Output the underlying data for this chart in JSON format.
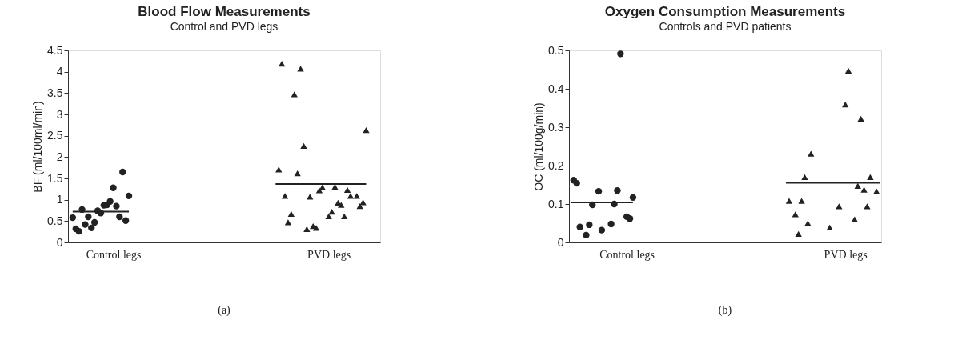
{
  "chart_data": [
    {
      "type": "scatter",
      "title": "Blood Flow Measurements",
      "subtitle": "Control and PVD legs",
      "ylabel": "BF (ml/100ml/min)",
      "categories": [
        null,
        null,
        null,
        null,
        null,
        null,
        null,
        null,
        null,
        null,
        null,
        null,
        null,
        null,
        "Control legs",
        null,
        null,
        null,
        null,
        null,
        null,
        null,
        null,
        null,
        null,
        null,
        null,
        null,
        null,
        null,
        null,
        null,
        null,
        null,
        null,
        null,
        null,
        null,
        null,
        null,
        null,
        null,
        null,
        null,
        null,
        null,
        null,
        null,
        null,
        null,
        null,
        null,
        null,
        null,
        null,
        null,
        null,
        null,
        null,
        null,
        null,
        null,
        null,
        null,
        null,
        null,
        null,
        null,
        null,
        null,
        null,
        null,
        null,
        null,
        null,
        null,
        null,
        null,
        null,
        null,
        null,
        null,
        null,
        "PVD legs",
        null,
        null,
        null,
        null,
        null,
        null,
        null,
        null,
        null,
        null,
        null,
        null,
        null,
        null,
        null,
        null
      ],
      "ylim": [
        0,
        4.5
      ],
      "yticks": [
        0,
        0.5,
        1,
        1.5,
        2,
        2.5,
        3,
        3.5,
        4,
        4.5
      ],
      "grid": false,
      "legend": false,
      "annotations": [
        "(a)"
      ],
      "series": [
        {
          "marker": "circle",
          "color": "#222222",
          "values": [
            null,
            0.58,
            0.32,
            0.26,
            0.77,
            0.42,
            0.6,
            0.34,
            0.47,
            0.74,
            0.69,
            0.87,
            0.88,
            0.96,
            1.28,
            0.85,
            0.6,
            1.65,
            0.51,
            1.09,
            null,
            null,
            null,
            null,
            null,
            null,
            null,
            null,
            null,
            null,
            null,
            null,
            null,
            null,
            null,
            null,
            null,
            null,
            null,
            null,
            null,
            null,
            null,
            null,
            null,
            null,
            null,
            null,
            null,
            null,
            null,
            null,
            null,
            null,
            null,
            null,
            null,
            null,
            null,
            null,
            null,
            null,
            null,
            null,
            null,
            null,
            null,
            null,
            null,
            null,
            null,
            null,
            null,
            null,
            null,
            null,
            null,
            null,
            null,
            null,
            null,
            null,
            null,
            null,
            null,
            null,
            null,
            null,
            null,
            null,
            null,
            null,
            null,
            null,
            null,
            null,
            null,
            null,
            null,
            null
          ]
        },
        {
          "marker": "triangle",
          "color": "#222222",
          "values": [
            null,
            null,
            null,
            null,
            null,
            null,
            null,
            null,
            null,
            null,
            null,
            null,
            null,
            null,
            null,
            null,
            null,
            null,
            null,
            null,
            null,
            null,
            null,
            null,
            null,
            null,
            null,
            null,
            null,
            null,
            null,
            null,
            null,
            null,
            null,
            null,
            null,
            null,
            null,
            null,
            null,
            null,
            null,
            null,
            null,
            null,
            null,
            null,
            null,
            null,
            null,
            null,
            null,
            null,
            null,
            null,
            null,
            null,
            null,
            null,
            null,
            null,
            null,
            null,
            null,
            null,
            null,
            1.71,
            4.19,
            1.09,
            0.47,
            0.67,
            3.47,
            1.62,
            4.07,
            2.26,
            0.31,
            1.07,
            0.38,
            0.34,
            1.22,
            1.29,
            null,
            0.61,
            0.72,
            1.3,
            0.93,
            0.88,
            0.61,
            1.23,
            1.09,
            null,
            1.09,
            0.85,
            0.94,
            2.63,
            null,
            null,
            null,
            null
          ]
        },
        {
          "type": "line",
          "marker": "none",
          "color": "#222222",
          "values": [
            null,
            0.72,
            0.72,
            0.72,
            0.72,
            0.72,
            0.72,
            0.72,
            0.72,
            0.72,
            0.72,
            0.72,
            0.72,
            0.72,
            0.72,
            0.72,
            0.72,
            0.72,
            0.72,
            0.72,
            null,
            null,
            null,
            null,
            null,
            null,
            null,
            null,
            null,
            null,
            null,
            null,
            null,
            null,
            null,
            null,
            null,
            null,
            null,
            null,
            null,
            null,
            null,
            null,
            null,
            null,
            null,
            null,
            null,
            null,
            null,
            null,
            null,
            null,
            null,
            null,
            null,
            null,
            null,
            null,
            null,
            null,
            null,
            null,
            null,
            null,
            null,
            null,
            null,
            null,
            null,
            null,
            null,
            null,
            null,
            null,
            null,
            null,
            null,
            null,
            null,
            null,
            null,
            null,
            null,
            null,
            null,
            null,
            null,
            null,
            null,
            null,
            null,
            null,
            null,
            null,
            null,
            null,
            null,
            null
          ]
        },
        {
          "type": "line",
          "marker": "none",
          "color": "#222222",
          "values": [
            null,
            null,
            null,
            null,
            null,
            null,
            null,
            null,
            null,
            null,
            null,
            null,
            null,
            null,
            null,
            null,
            null,
            null,
            null,
            null,
            null,
            null,
            null,
            null,
            null,
            null,
            null,
            null,
            null,
            null,
            null,
            null,
            null,
            null,
            null,
            null,
            null,
            null,
            null,
            null,
            null,
            null,
            null,
            null,
            null,
            null,
            null,
            null,
            null,
            null,
            null,
            null,
            null,
            null,
            null,
            null,
            null,
            null,
            null,
            null,
            null,
            null,
            null,
            null,
            null,
            null,
            1.37,
            1.37,
            1.37,
            1.37,
            1.37,
            1.37,
            1.37,
            1.37,
            1.37,
            1.37,
            1.37,
            1.37,
            1.37,
            1.37,
            1.37,
            1.37,
            1.37,
            1.37,
            1.37,
            1.37,
            1.37,
            1.37,
            1.37,
            1.37,
            1.37,
            1.37,
            1.37,
            1.37,
            1.37,
            1.37,
            null,
            null,
            null,
            null
          ]
        }
      ]
    },
    {
      "type": "scatter",
      "title": "Oxygen Consumption Measurements",
      "subtitle": "Controls and PVD patients",
      "ylabel": "OC (ml/100g/min)",
      "categories": [
        null,
        null,
        null,
        null,
        null,
        null,
        null,
        null,
        null,
        null,
        null,
        null,
        null,
        null,
        null,
        null,
        null,
        null,
        "Control legs",
        null,
        null,
        null,
        null,
        null,
        null,
        null,
        null,
        null,
        null,
        null,
        null,
        null,
        null,
        null,
        null,
        null,
        null,
        null,
        null,
        null,
        null,
        null,
        null,
        null,
        null,
        null,
        null,
        null,
        null,
        null,
        null,
        null,
        null,
        null,
        null,
        null,
        null,
        null,
        null,
        null,
        null,
        null,
        null,
        null,
        null,
        null,
        null,
        null,
        null,
        null,
        null,
        null,
        null,
        null,
        null,
        null,
        null,
        null,
        null,
        null,
        null,
        null,
        null,
        null,
        null,
        null,
        null,
        null,
        "PVD legs",
        null,
        null,
        null,
        null,
        null,
        null,
        null,
        null,
        null,
        null,
        null
      ],
      "ylim": [
        0,
        0.5
      ],
      "yticks": [
        0,
        0.1,
        0.2,
        0.3,
        0.4,
        0.5
      ],
      "grid": false,
      "legend": false,
      "annotations": [
        "(b)"
      ],
      "series": [
        {
          "marker": "circle",
          "color": "#222222",
          "values": [
            null,
            0.162,
            0.154,
            0.04,
            null,
            0.019,
            0.046,
            0.098,
            null,
            0.133,
            0.032,
            null,
            null,
            0.048,
            0.1,
            0.135,
            0.491,
            null,
            0.067,
            0.062,
            0.117,
            null,
            null,
            null,
            null,
            null,
            null,
            null,
            null,
            null,
            null,
            null,
            null,
            null,
            null,
            null,
            null,
            null,
            null,
            null,
            null,
            null,
            null,
            null,
            null,
            null,
            null,
            null,
            null,
            null,
            null,
            null,
            null,
            null,
            null,
            null,
            null,
            null,
            null,
            null,
            null,
            null,
            null,
            null,
            null,
            null,
            null,
            null,
            null,
            null,
            null,
            null,
            null,
            null,
            null,
            null,
            null,
            null,
            null,
            null,
            null,
            null,
            null,
            null,
            null,
            null,
            null,
            null,
            null,
            null,
            null,
            null,
            null,
            null,
            null,
            null,
            null,
            null,
            null,
            null
          ]
        },
        {
          "marker": "triangle",
          "color": "#222222",
          "values": [
            null,
            null,
            null,
            null,
            null,
            null,
            null,
            null,
            null,
            null,
            null,
            null,
            null,
            null,
            null,
            null,
            null,
            null,
            null,
            null,
            null,
            null,
            null,
            null,
            null,
            null,
            null,
            null,
            null,
            null,
            null,
            null,
            null,
            null,
            null,
            null,
            null,
            null,
            null,
            null,
            null,
            null,
            null,
            null,
            null,
            null,
            null,
            null,
            null,
            null,
            null,
            null,
            null,
            null,
            null,
            null,
            null,
            null,
            null,
            null,
            null,
            null,
            null,
            null,
            null,
            null,
            null,
            null,
            null,
            null,
            0.108,
            null,
            0.073,
            0.022,
            0.108,
            0.17,
            0.05,
            0.231,
            null,
            null,
            null,
            null,
            null,
            0.039,
            null,
            null,
            0.094,
            null,
            0.359,
            0.447,
            null,
            0.06,
            0.147,
            0.322,
            0.137,
            0.094,
            0.17,
            null,
            0.133,
            null
          ]
        },
        {
          "type": "line",
          "marker": "none",
          "color": "#222222",
          "values": [
            0.104,
            0.104,
            0.104,
            0.104,
            0.104,
            0.104,
            0.104,
            0.104,
            0.104,
            0.104,
            0.104,
            0.104,
            0.104,
            0.104,
            0.104,
            0.104,
            0.104,
            0.104,
            0.104,
            0.104,
            0.104,
            null,
            null,
            null,
            null,
            null,
            null,
            null,
            null,
            null,
            null,
            null,
            null,
            null,
            null,
            null,
            null,
            null,
            null,
            null,
            null,
            null,
            null,
            null,
            null,
            null,
            null,
            null,
            null,
            null,
            null,
            null,
            null,
            null,
            null,
            null,
            null,
            null,
            null,
            null,
            null,
            null,
            null,
            null,
            null,
            null,
            null,
            null,
            null,
            null,
            null,
            null,
            null,
            null,
            null,
            null,
            null,
            null,
            null,
            null,
            null,
            null,
            null,
            null,
            null,
            null,
            null,
            null,
            null,
            null,
            null,
            null,
            null,
            null,
            null,
            null,
            null,
            null,
            null,
            null
          ]
        },
        {
          "type": "line",
          "marker": "none",
          "color": "#222222",
          "values": [
            null,
            null,
            null,
            null,
            null,
            null,
            null,
            null,
            null,
            null,
            null,
            null,
            null,
            null,
            null,
            null,
            null,
            null,
            null,
            null,
            null,
            null,
            null,
            null,
            null,
            null,
            null,
            null,
            null,
            null,
            null,
            null,
            null,
            null,
            null,
            null,
            null,
            null,
            null,
            null,
            null,
            null,
            null,
            null,
            null,
            null,
            null,
            null,
            null,
            null,
            null,
            null,
            null,
            null,
            null,
            null,
            null,
            null,
            null,
            null,
            null,
            null,
            null,
            null,
            null,
            null,
            null,
            null,
            null,
            0.155,
            0.155,
            0.155,
            0.155,
            0.155,
            0.155,
            0.155,
            0.155,
            0.155,
            0.155,
            0.155,
            0.155,
            0.155,
            0.155,
            0.155,
            0.155,
            0.155,
            0.155,
            0.155,
            0.155,
            0.155,
            0.155,
            0.155,
            0.155,
            0.155,
            0.155,
            0.155,
            0.155,
            0.155,
            0.155,
            0.155
          ]
        }
      ]
    }
  ]
}
